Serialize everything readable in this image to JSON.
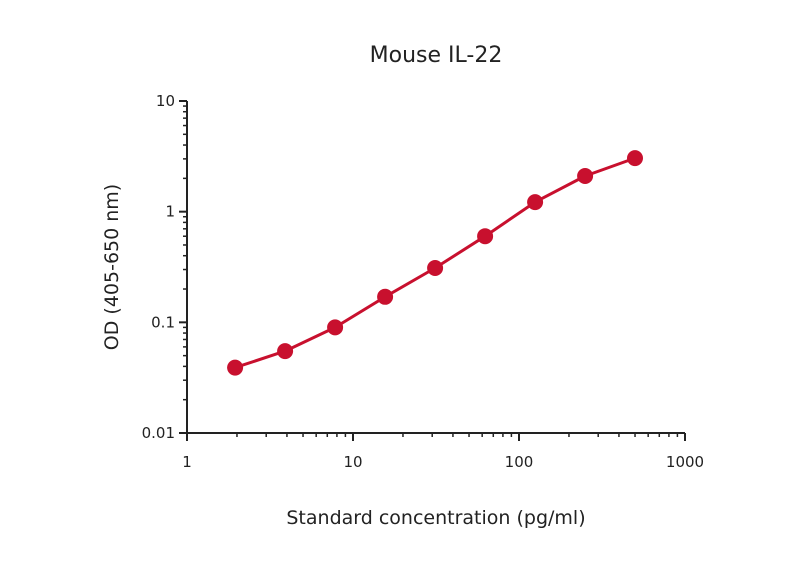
{
  "chart_data": {
    "type": "line",
    "title": "Mouse IL-22",
    "xlabel": "Standard concentration (pg/ml)",
    "ylabel": "OD (405-650 nm)",
    "x_scale": "log",
    "y_scale": "log",
    "xlim": [
      1,
      1000
    ],
    "ylim": [
      0.01,
      10
    ],
    "x_ticks": [
      "1",
      "10",
      "100",
      "1000"
    ],
    "y_ticks": [
      "0.01",
      "0.1",
      "1",
      "10"
    ],
    "grid": false,
    "color": "#c8102e",
    "series": [
      {
        "x": [
          1.95,
          3.9,
          7.8,
          15.6,
          31.25,
          62.5,
          125,
          250,
          500
        ],
        "y": [
          0.039,
          0.055,
          0.09,
          0.17,
          0.31,
          0.6,
          1.22,
          2.1,
          3.05
        ]
      }
    ]
  }
}
